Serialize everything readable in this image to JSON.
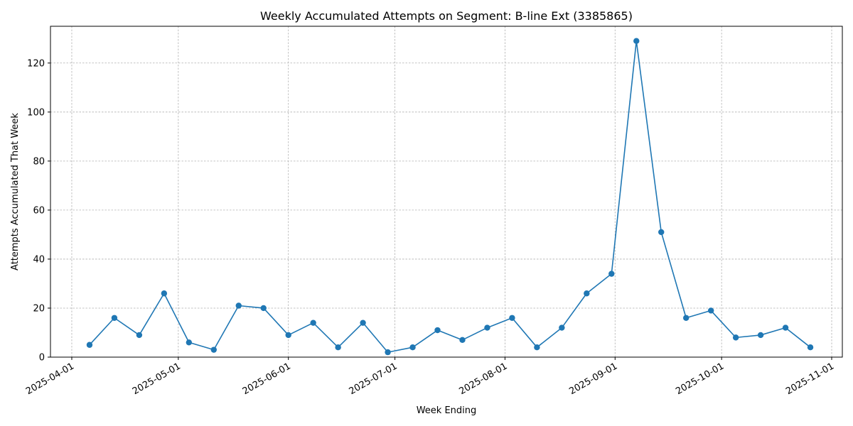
{
  "chart_data": {
    "type": "line",
    "title": "Weekly Accumulated Attempts on Segment: B-line Ext (3385865)",
    "xlabel": "Week Ending",
    "ylabel": "Attempts Accumulated That Week",
    "x_ticks": [
      "2025-04-01",
      "2025-05-01",
      "2025-06-01",
      "2025-07-01",
      "2025-08-01",
      "2025-09-01",
      "2025-10-01",
      "2025-11-01"
    ],
    "y_ticks": [
      0,
      20,
      40,
      60,
      80,
      100,
      120
    ],
    "xlim": [
      "2025-03-26",
      "2025-11-04"
    ],
    "ylim": [
      0,
      135
    ],
    "grid": true,
    "series": [
      {
        "color": "#1f77b4",
        "x": [
          "2025-04-06",
          "2025-04-13",
          "2025-04-20",
          "2025-04-27",
          "2025-05-04",
          "2025-05-11",
          "2025-05-18",
          "2025-05-25",
          "2025-06-01",
          "2025-06-08",
          "2025-06-15",
          "2025-06-22",
          "2025-06-29",
          "2025-07-06",
          "2025-07-13",
          "2025-07-20",
          "2025-07-27",
          "2025-08-03",
          "2025-08-10",
          "2025-08-17",
          "2025-08-24",
          "2025-08-31",
          "2025-09-07",
          "2025-09-14",
          "2025-09-21",
          "2025-09-28",
          "2025-10-05",
          "2025-10-12",
          "2025-10-19",
          "2025-10-26"
        ],
        "values": [
          5,
          16,
          9,
          26,
          6,
          3,
          21,
          20,
          9,
          14,
          4,
          14,
          2,
          4,
          11,
          7,
          12,
          16,
          4,
          12,
          26,
          34,
          129,
          51,
          16,
          19,
          8,
          9,
          12,
          4
        ]
      }
    ]
  }
}
